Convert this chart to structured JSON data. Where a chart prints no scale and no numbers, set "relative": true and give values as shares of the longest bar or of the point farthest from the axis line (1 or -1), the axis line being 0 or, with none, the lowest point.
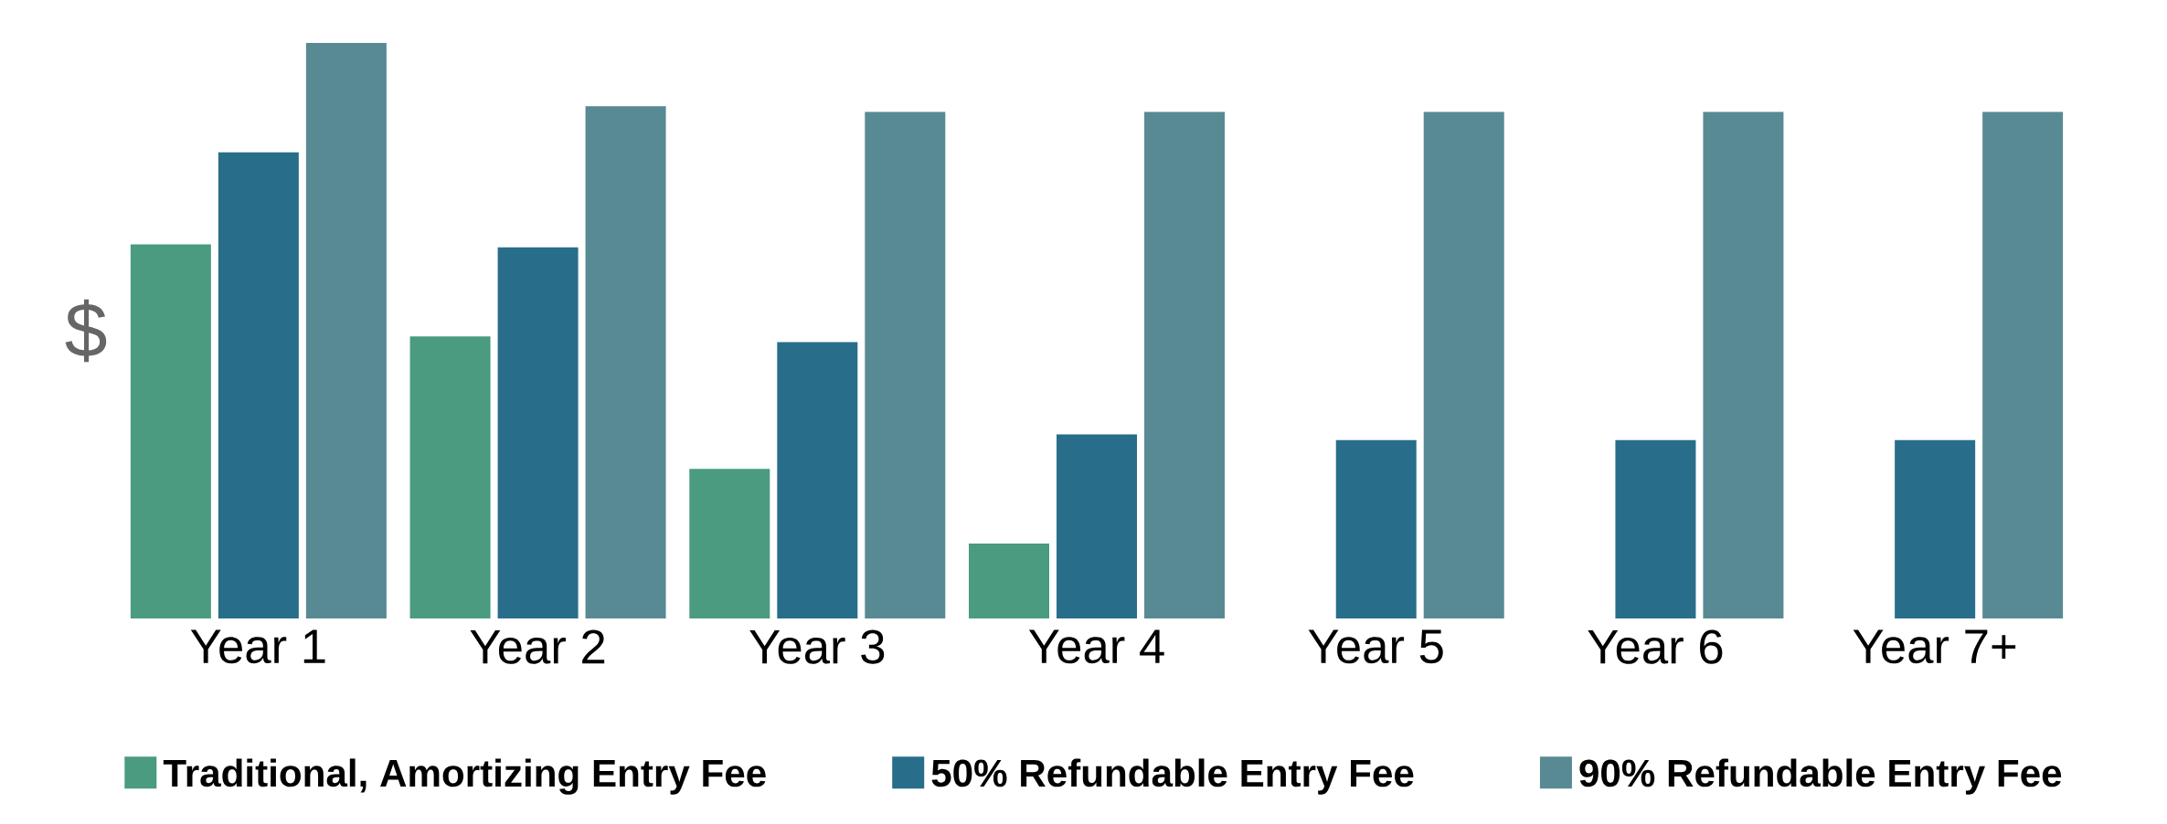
{
  "chart_data": {
    "type": "bar",
    "relative": true,
    "ylabel": "$",
    "legend": "bottom",
    "categories": [
      "Year 1",
      "Year 2",
      "Year 3",
      "Year 4",
      "Year 5",
      "Year 6",
      "Year 7+"
    ],
    "series": [
      {
        "name": "Traditional, Amortizing Entry Fee",
        "color": "#4a9b80",
        "values": [
          0.65,
          0.49,
          0.26,
          0.13,
          null,
          null,
          null
        ]
      },
      {
        "name": "50% Refundable Entry Fee",
        "color": "#286e8a",
        "values": [
          0.81,
          0.645,
          0.48,
          0.32,
          0.31,
          0.31,
          0.31
        ]
      },
      {
        "name": "90% Refundable Entry Fee",
        "color": "#588a94",
        "values": [
          1,
          0.89,
          0.88,
          0.88,
          0.88,
          0.88,
          0.88
        ]
      }
    ]
  }
}
